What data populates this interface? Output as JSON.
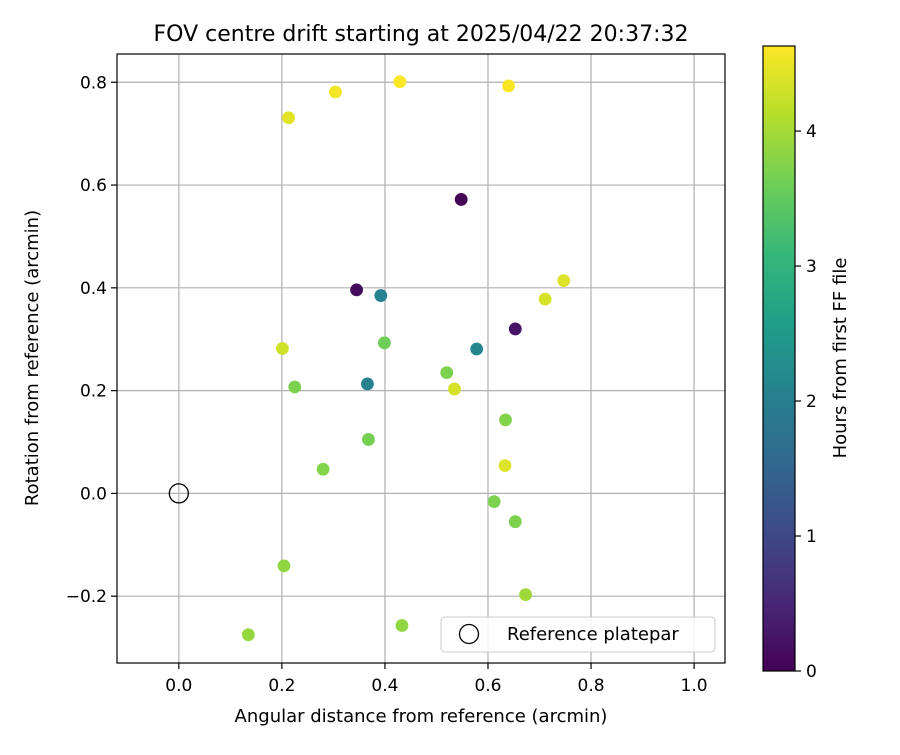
{
  "chart_data": {
    "type": "scatter",
    "title": "FOV centre drift starting at 2025/04/22 20:37:32",
    "xlabel": "Angular distance from reference (arcmin)",
    "ylabel": "Rotation from reference (arcmin)",
    "xlim": [
      -0.12,
      1.06
    ],
    "ylim": [
      -0.33,
      0.855
    ],
    "grid": true,
    "x_ticks": [
      0.0,
      0.2,
      0.4,
      0.6,
      0.8,
      1.0
    ],
    "x_tick_labels": [
      "0.0",
      "0.2",
      "0.4",
      "0.6",
      "0.8",
      "1.0"
    ],
    "y_ticks": [
      -0.2,
      0.0,
      0.2,
      0.4,
      0.6,
      0.8
    ],
    "y_tick_labels": [
      "−0.2",
      "0.0",
      "0.2",
      "0.4",
      "0.6",
      "0.8"
    ],
    "colorbar": {
      "label": "Hours from first FF file",
      "range": [
        0,
        4.63
      ],
      "ticks": [
        0,
        1,
        2,
        3,
        4
      ],
      "tick_labels": [
        "0",
        "1",
        "2",
        "3",
        "4"
      ],
      "colormap": "viridis"
    },
    "reference_point": {
      "x": 0.0,
      "y": 0.0,
      "label": "Reference platepar"
    },
    "legend": {
      "location": "lower-right",
      "label": "Reference platepar"
    },
    "points": [
      {
        "x": 0.548,
        "y": 0.572,
        "hours": 0.05
      },
      {
        "x": 0.345,
        "y": 0.396,
        "hours": 0.15
      },
      {
        "x": 0.653,
        "y": 0.32,
        "hours": 0.25
      },
      {
        "x": 0.392,
        "y": 0.385,
        "hours": 2.05
      },
      {
        "x": 0.578,
        "y": 0.281,
        "hours": 2.15
      },
      {
        "x": 0.366,
        "y": 0.213,
        "hours": 2.05
      },
      {
        "x": 0.399,
        "y": 0.293,
        "hours": 3.6
      },
      {
        "x": 0.225,
        "y": 0.207,
        "hours": 3.7
      },
      {
        "x": 0.52,
        "y": 0.235,
        "hours": 3.7
      },
      {
        "x": 0.368,
        "y": 0.105,
        "hours": 3.65
      },
      {
        "x": 0.634,
        "y": 0.143,
        "hours": 3.75
      },
      {
        "x": 0.28,
        "y": 0.047,
        "hours": 3.75
      },
      {
        "x": 0.612,
        "y": -0.016,
        "hours": 3.7
      },
      {
        "x": 0.653,
        "y": -0.055,
        "hours": 3.7
      },
      {
        "x": 0.204,
        "y": -0.141,
        "hours": 3.85
      },
      {
        "x": 0.673,
        "y": -0.197,
        "hours": 3.95
      },
      {
        "x": 0.135,
        "y": -0.275,
        "hours": 3.9
      },
      {
        "x": 0.433,
        "y": -0.257,
        "hours": 3.85
      },
      {
        "x": 0.201,
        "y": 0.282,
        "hours": 4.3
      },
      {
        "x": 0.535,
        "y": 0.203,
        "hours": 4.35
      },
      {
        "x": 0.633,
        "y": 0.054,
        "hours": 4.4
      },
      {
        "x": 0.711,
        "y": 0.378,
        "hours": 4.35
      },
      {
        "x": 0.747,
        "y": 0.414,
        "hours": 4.4
      },
      {
        "x": 0.213,
        "y": 0.731,
        "hours": 4.45
      },
      {
        "x": 0.304,
        "y": 0.781,
        "hours": 4.55
      },
      {
        "x": 0.429,
        "y": 0.801,
        "hours": 4.6
      },
      {
        "x": 0.64,
        "y": 0.793,
        "hours": 4.6
      }
    ]
  }
}
